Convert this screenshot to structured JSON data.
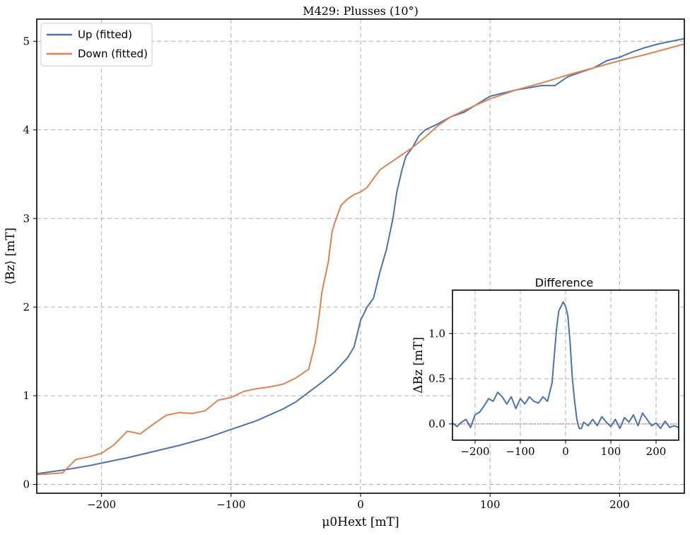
{
  "chart_data": [
    {
      "type": "line",
      "title": "M429: Plusses (10°)",
      "xlabel": "μ0Hext [mT]",
      "ylabel": "⟨Bz⟩ [mT]",
      "xlim": [
        -250,
        250
      ],
      "ylim": [
        -0.1,
        5.25
      ],
      "xticks": [
        -200,
        -100,
        0,
        100,
        200
      ],
      "xtick_labels": [
        "−200",
        "−100",
        "0",
        "100",
        "200"
      ],
      "yticks": [
        0,
        1,
        2,
        3,
        4,
        5
      ],
      "ytick_labels": [
        "0",
        "1",
        "2",
        "3",
        "4",
        "5"
      ],
      "grid": true,
      "legend_position": "top-left",
      "series": [
        {
          "name": "Up (fitted)",
          "color": "#4c72b0",
          "x": [
            -250,
            -230,
            -210,
            -200,
            -180,
            -160,
            -140,
            -120,
            -100,
            -80,
            -60,
            -50,
            -40,
            -30,
            -20,
            -10,
            -5,
            0,
            5,
            10,
            15,
            20,
            25,
            28,
            32,
            35,
            40,
            45,
            50,
            60,
            70,
            80,
            100,
            120,
            140,
            150,
            160,
            170,
            180,
            190,
            200,
            210,
            220,
            230,
            240,
            250
          ],
          "y": [
            0.12,
            0.16,
            0.21,
            0.24,
            0.3,
            0.37,
            0.44,
            0.52,
            0.62,
            0.72,
            0.85,
            0.93,
            1.04,
            1.15,
            1.27,
            1.43,
            1.55,
            1.85,
            2.0,
            2.1,
            2.4,
            2.65,
            3.0,
            3.3,
            3.55,
            3.7,
            3.8,
            3.93,
            4.0,
            4.07,
            4.15,
            4.2,
            4.38,
            4.45,
            4.5,
            4.5,
            4.6,
            4.65,
            4.7,
            4.78,
            4.82,
            4.88,
            4.93,
            4.97,
            5.0,
            5.03
          ]
        },
        {
          "name": "Down (fitted)",
          "color": "#dd8452",
          "x": [
            -250,
            -230,
            -220,
            -210,
            -200,
            -190,
            -180,
            -170,
            -160,
            -150,
            -140,
            -130,
            -120,
            -110,
            -100,
            -90,
            -80,
            -70,
            -60,
            -50,
            -45,
            -40,
            -35,
            -32,
            -30,
            -28,
            -25,
            -22,
            -20,
            -15,
            -10,
            -5,
            0,
            5,
            10,
            15,
            20,
            25,
            30,
            35,
            40,
            50,
            60,
            70,
            80,
            100,
            120,
            140,
            160,
            180,
            200,
            220,
            240,
            250
          ],
          "y": [
            0.11,
            0.13,
            0.28,
            0.31,
            0.35,
            0.45,
            0.6,
            0.57,
            0.68,
            0.78,
            0.81,
            0.8,
            0.83,
            0.95,
            0.98,
            1.05,
            1.08,
            1.1,
            1.13,
            1.2,
            1.25,
            1.3,
            1.6,
            1.9,
            2.15,
            2.3,
            2.5,
            2.85,
            2.95,
            3.15,
            3.22,
            3.27,
            3.3,
            3.35,
            3.45,
            3.55,
            3.6,
            3.65,
            3.7,
            3.75,
            3.8,
            3.92,
            4.05,
            4.15,
            4.22,
            4.35,
            4.45,
            4.53,
            4.62,
            4.7,
            4.78,
            4.85,
            4.93,
            4.97
          ]
        }
      ]
    },
    {
      "type": "line",
      "title": "Difference",
      "xlabel": "",
      "ylabel": "ΔBz [mT]",
      "xlim": [
        -250,
        250
      ],
      "ylim": [
        -0.18,
        1.48
      ],
      "xticks": [
        -200,
        -100,
        0,
        100,
        200
      ],
      "xtick_labels": [
        "−200",
        "−100",
        "0",
        "100",
        "200"
      ],
      "yticks": [
        0,
        0.5,
        1.0
      ],
      "ytick_labels": [
        "0.0",
        "0.5",
        "1.0"
      ],
      "grid": true,
      "reference_line": {
        "y": 0,
        "color": "#c44e52"
      },
      "series": [
        {
          "name": "",
          "color": "#4c72b0",
          "x": [
            -250,
            -240,
            -230,
            -220,
            -210,
            -200,
            -190,
            -180,
            -170,
            -160,
            -150,
            -140,
            -130,
            -120,
            -110,
            -100,
            -90,
            -80,
            -70,
            -60,
            -50,
            -40,
            -30,
            -25,
            -20,
            -15,
            -10,
            -5,
            0,
            5,
            10,
            15,
            20,
            25,
            30,
            35,
            40,
            50,
            60,
            70,
            80,
            90,
            100,
            110,
            120,
            130,
            140,
            150,
            160,
            170,
            180,
            190,
            200,
            210,
            220,
            230,
            240,
            250
          ],
          "y": [
            0.01,
            -0.03,
            0.02,
            0.05,
            -0.04,
            0.1,
            0.13,
            0.2,
            0.28,
            0.25,
            0.35,
            0.3,
            0.22,
            0.3,
            0.17,
            0.28,
            0.22,
            0.3,
            0.25,
            0.23,
            0.3,
            0.25,
            0.45,
            0.75,
            1.05,
            1.25,
            1.3,
            1.35,
            1.3,
            1.2,
            0.9,
            0.5,
            0.25,
            0.05,
            -0.05,
            -0.05,
            0.02,
            -0.02,
            0.05,
            -0.02,
            0.08,
            0.02,
            -0.03,
            0.05,
            -0.05,
            0.07,
            0.02,
            0.1,
            -0.02,
            0.12,
            0.05,
            -0.02,
            0.01,
            -0.05,
            0.03,
            -0.04,
            -0.02,
            -0.04
          ]
        }
      ]
    }
  ],
  "legend": {
    "items": [
      {
        "label": "Up (fitted)",
        "color": "#4c72b0"
      },
      {
        "label": "Down (fitted)",
        "color": "#dd8452"
      }
    ]
  }
}
